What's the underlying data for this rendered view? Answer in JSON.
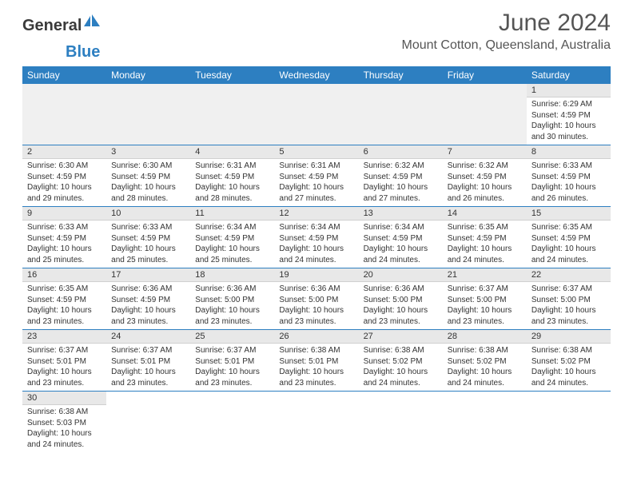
{
  "logo": {
    "part1": "General",
    "part2": "Blue"
  },
  "title": "June 2024",
  "location": "Mount Cotton, Queensland, Australia",
  "colors": {
    "header_bg": "#2d7fc1",
    "header_text": "#ffffff",
    "daynum_bg": "#e8e8e8",
    "border": "#2d7fc1",
    "text": "#333333"
  },
  "days_of_week": [
    "Sunday",
    "Monday",
    "Tuesday",
    "Wednesday",
    "Thursday",
    "Friday",
    "Saturday"
  ],
  "first_weekday": 6,
  "cells": {
    "1": {
      "sunrise": "6:29 AM",
      "sunset": "4:59 PM",
      "daylight": "10 hours and 30 minutes."
    },
    "2": {
      "sunrise": "6:30 AM",
      "sunset": "4:59 PM",
      "daylight": "10 hours and 29 minutes."
    },
    "3": {
      "sunrise": "6:30 AM",
      "sunset": "4:59 PM",
      "daylight": "10 hours and 28 minutes."
    },
    "4": {
      "sunrise": "6:31 AM",
      "sunset": "4:59 PM",
      "daylight": "10 hours and 28 minutes."
    },
    "5": {
      "sunrise": "6:31 AM",
      "sunset": "4:59 PM",
      "daylight": "10 hours and 27 minutes."
    },
    "6": {
      "sunrise": "6:32 AM",
      "sunset": "4:59 PM",
      "daylight": "10 hours and 27 minutes."
    },
    "7": {
      "sunrise": "6:32 AM",
      "sunset": "4:59 PM",
      "daylight": "10 hours and 26 minutes."
    },
    "8": {
      "sunrise": "6:33 AM",
      "sunset": "4:59 PM",
      "daylight": "10 hours and 26 minutes."
    },
    "9": {
      "sunrise": "6:33 AM",
      "sunset": "4:59 PM",
      "daylight": "10 hours and 25 minutes."
    },
    "10": {
      "sunrise": "6:33 AM",
      "sunset": "4:59 PM",
      "daylight": "10 hours and 25 minutes."
    },
    "11": {
      "sunrise": "6:34 AM",
      "sunset": "4:59 PM",
      "daylight": "10 hours and 25 minutes."
    },
    "12": {
      "sunrise": "6:34 AM",
      "sunset": "4:59 PM",
      "daylight": "10 hours and 24 minutes."
    },
    "13": {
      "sunrise": "6:34 AM",
      "sunset": "4:59 PM",
      "daylight": "10 hours and 24 minutes."
    },
    "14": {
      "sunrise": "6:35 AM",
      "sunset": "4:59 PM",
      "daylight": "10 hours and 24 minutes."
    },
    "15": {
      "sunrise": "6:35 AM",
      "sunset": "4:59 PM",
      "daylight": "10 hours and 24 minutes."
    },
    "16": {
      "sunrise": "6:35 AM",
      "sunset": "4:59 PM",
      "daylight": "10 hours and 23 minutes."
    },
    "17": {
      "sunrise": "6:36 AM",
      "sunset": "4:59 PM",
      "daylight": "10 hours and 23 minutes."
    },
    "18": {
      "sunrise": "6:36 AM",
      "sunset": "5:00 PM",
      "daylight": "10 hours and 23 minutes."
    },
    "19": {
      "sunrise": "6:36 AM",
      "sunset": "5:00 PM",
      "daylight": "10 hours and 23 minutes."
    },
    "20": {
      "sunrise": "6:36 AM",
      "sunset": "5:00 PM",
      "daylight": "10 hours and 23 minutes."
    },
    "21": {
      "sunrise": "6:37 AM",
      "sunset": "5:00 PM",
      "daylight": "10 hours and 23 minutes."
    },
    "22": {
      "sunrise": "6:37 AM",
      "sunset": "5:00 PM",
      "daylight": "10 hours and 23 minutes."
    },
    "23": {
      "sunrise": "6:37 AM",
      "sunset": "5:01 PM",
      "daylight": "10 hours and 23 minutes."
    },
    "24": {
      "sunrise": "6:37 AM",
      "sunset": "5:01 PM",
      "daylight": "10 hours and 23 minutes."
    },
    "25": {
      "sunrise": "6:37 AM",
      "sunset": "5:01 PM",
      "daylight": "10 hours and 23 minutes."
    },
    "26": {
      "sunrise": "6:38 AM",
      "sunset": "5:01 PM",
      "daylight": "10 hours and 23 minutes."
    },
    "27": {
      "sunrise": "6:38 AM",
      "sunset": "5:02 PM",
      "daylight": "10 hours and 24 minutes."
    },
    "28": {
      "sunrise": "6:38 AM",
      "sunset": "5:02 PM",
      "daylight": "10 hours and 24 minutes."
    },
    "29": {
      "sunrise": "6:38 AM",
      "sunset": "5:02 PM",
      "daylight": "10 hours and 24 minutes."
    },
    "30": {
      "sunrise": "6:38 AM",
      "sunset": "5:03 PM",
      "daylight": "10 hours and 24 minutes."
    }
  },
  "labels": {
    "sunrise": "Sunrise:",
    "sunset": "Sunset:",
    "daylight": "Daylight:"
  }
}
